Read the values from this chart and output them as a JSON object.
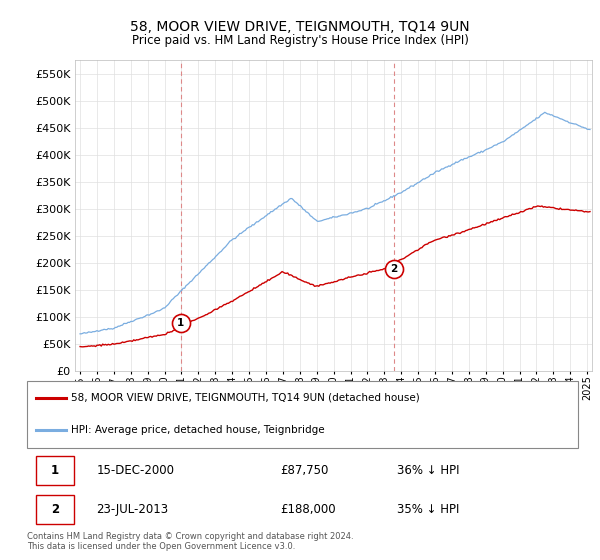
{
  "title": "58, MOOR VIEW DRIVE, TEIGNMOUTH, TQ14 9UN",
  "subtitle": "Price paid vs. HM Land Registry's House Price Index (HPI)",
  "legend_line1": "58, MOOR VIEW DRIVE, TEIGNMOUTH, TQ14 9UN (detached house)",
  "legend_line2": "HPI: Average price, detached house, Teignbridge",
  "annotation1_label": "1",
  "annotation1_date": "15-DEC-2000",
  "annotation1_price": "£87,750",
  "annotation1_hpi": "36% ↓ HPI",
  "annotation2_label": "2",
  "annotation2_date": "23-JUL-2013",
  "annotation2_price": "£188,000",
  "annotation2_hpi": "35% ↓ HPI",
  "footer": "Contains HM Land Registry data © Crown copyright and database right 2024.\nThis data is licensed under the Open Government Licence v3.0.",
  "red_color": "#cc0000",
  "blue_color": "#7aade0",
  "vline_color": "#dd8888",
  "grid_color": "#e0e0e0",
  "background_color": "#ffffff",
  "ylim": [
    0,
    575000
  ],
  "yticks": [
    0,
    50000,
    100000,
    150000,
    200000,
    250000,
    300000,
    350000,
    400000,
    450000,
    500000,
    550000
  ],
  "sale1_x": 2000.96,
  "sale1_y": 87750,
  "sale2_x": 2013.55,
  "sale2_y": 188000,
  "xlim_left": 1994.7,
  "xlim_right": 2025.3
}
